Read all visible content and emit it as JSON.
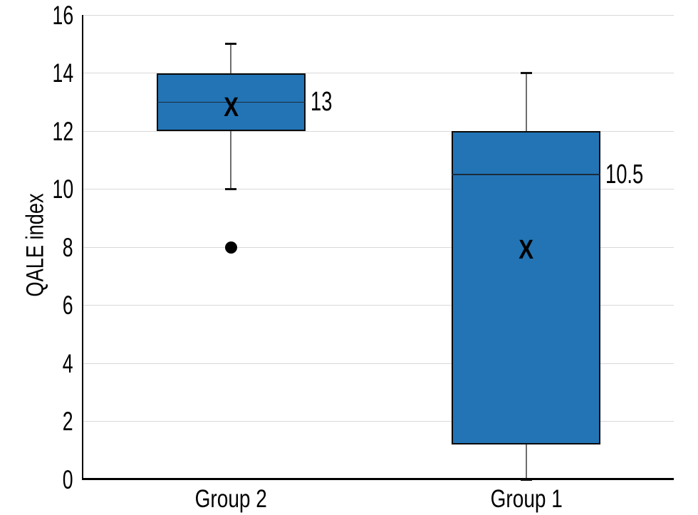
{
  "chart_data": {
    "type": "boxplot",
    "title": "",
    "ylabel": "QALE index",
    "xlabel": "",
    "ylim": [
      0,
      16
    ],
    "yticks": [
      0,
      2,
      4,
      6,
      8,
      10,
      12,
      14,
      16
    ],
    "grid": true,
    "legend": false,
    "categories": [
      "Group 2",
      "Group 1"
    ],
    "series": [
      {
        "name": "Group 2",
        "min": 10,
        "q1": 12,
        "median": 13,
        "q3": 14,
        "max": 15,
        "mean": 12.8,
        "outliers": [
          8
        ],
        "median_label": "13"
      },
      {
        "name": "Group 1",
        "min": 0,
        "q1": 1.2,
        "median": 10.5,
        "q3": 12,
        "max": 14,
        "mean": 7.9,
        "outliers": [],
        "median_label": "10.5"
      }
    ],
    "mean_marker_glyph": "X",
    "colors": {
      "box_fill": "#2274B5",
      "box_border": "#0A0A0A",
      "median_line": "#1C2B3A",
      "whisker": "#6E6E6E",
      "whisker_cap": "#111111",
      "outlier": "#000000",
      "gridline": "#D8D8D8",
      "axis": "#000000",
      "text": "#000000",
      "background": "#FFFFFF"
    }
  }
}
